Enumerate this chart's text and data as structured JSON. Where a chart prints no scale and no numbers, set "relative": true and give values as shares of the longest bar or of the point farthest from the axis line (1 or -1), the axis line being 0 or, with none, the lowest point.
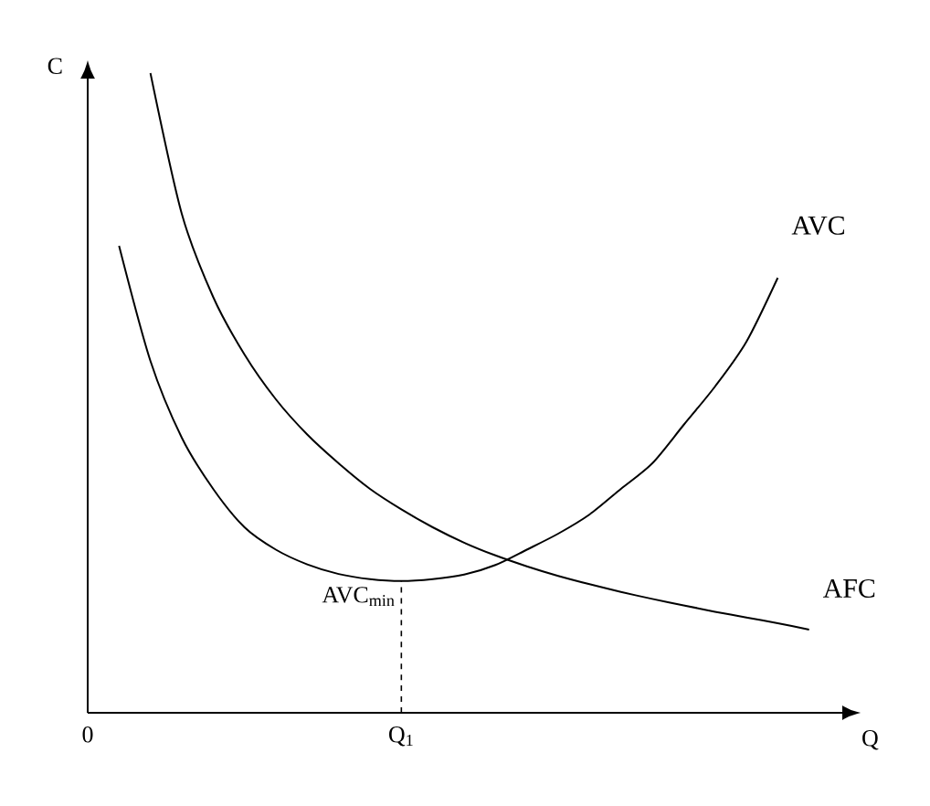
{
  "chart_data": {
    "type": "line",
    "relative": true,
    "xlabel": "Q",
    "ylabel": "C",
    "categories": [
      "0",
      null,
      null,
      null,
      null,
      null,
      null,
      null,
      null,
      null,
      "Q$_{1}$",
      null,
      null,
      null,
      null,
      null,
      null,
      null,
      null,
      null,
      null,
      null,
      null,
      null
    ],
    "series": [
      {
        "name": "AVC",
        "color": "#000000",
        "values": [
          null,
          0.73,
          0.55,
          0.43,
          0.35,
          0.29,
          0.255,
          0.232,
          0.217,
          0.209,
          0.206,
          0.209,
          0.216,
          0.231,
          0.255,
          0.28,
          0.31,
          0.35,
          0.39,
          0.45,
          0.51,
          0.58,
          0.68,
          null
        ]
      },
      {
        "name": "AFC",
        "color": "#000000",
        "values": [
          null,
          null,
          1.0,
          0.78,
          0.65,
          0.56,
          0.49,
          0.435,
          0.39,
          0.35,
          0.318,
          0.29,
          0.266,
          0.246,
          0.229,
          0.214,
          0.201,
          0.189,
          0.178,
          0.168,
          0.158,
          0.149,
          0.14,
          0.13
        ]
      }
    ],
    "ref_lines": [
      {
        "axis": "x",
        "value": "Q$_{1}$",
        "line_style": "dashed"
      }
    ],
    "annotations": [
      {
        "text": "AVC$_{min}$",
        "x": "Q$_{1}$",
        "y": 0.206
      }
    ]
  }
}
